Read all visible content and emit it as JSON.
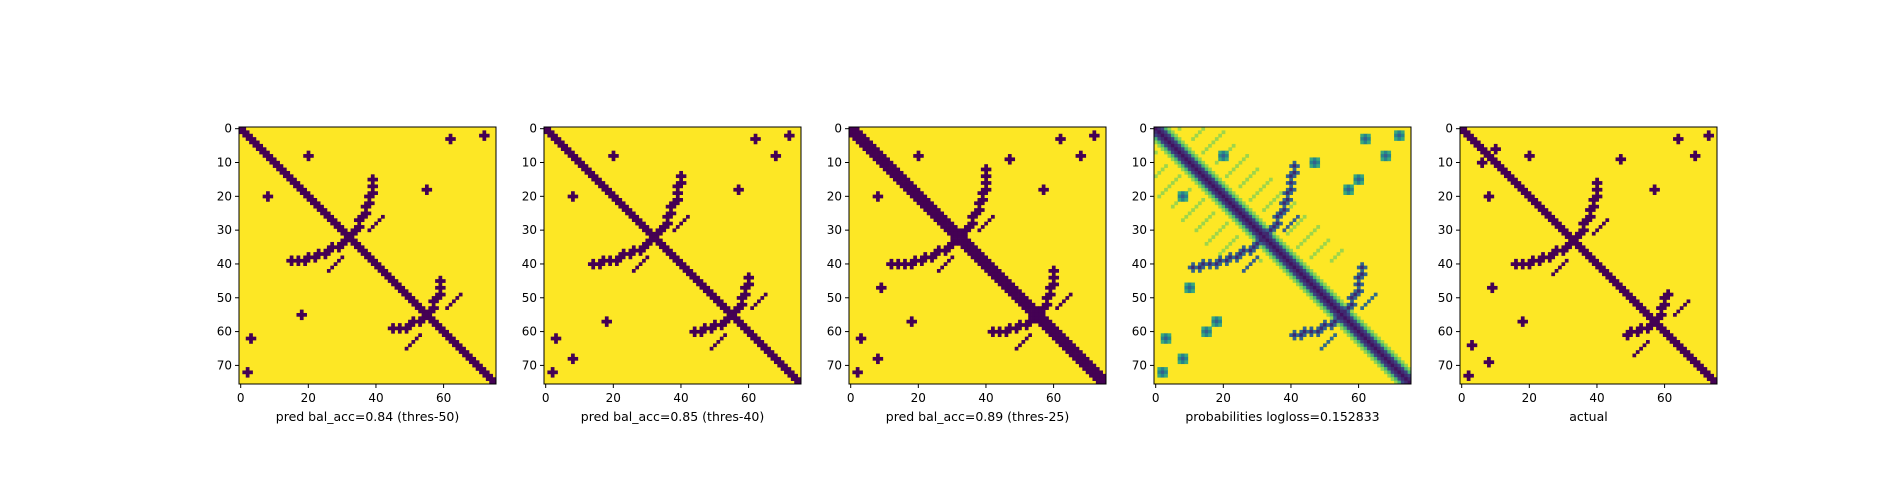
{
  "colors": {
    "low": "#440154",
    "high": "#fde725",
    "colormap": "viridis",
    "axes": "#000000",
    "background": "#ffffff"
  },
  "chart_data": [
    {
      "type": "heatmap",
      "xlabel": "pred bal_acc=0.84 (thres-50)",
      "xticks": [
        0,
        20,
        40,
        60
      ],
      "yticks": [
        0,
        10,
        20,
        30,
        40,
        50,
        60,
        70
      ],
      "xlim": [
        0,
        75
      ],
      "ylim": [
        75,
        0
      ],
      "shape": [
        76,
        76
      ],
      "value_range": [
        0,
        1
      ],
      "binary": true,
      "pattern": {
        "main_diagonal_halfwidth": 1.8,
        "cross_center": [
          32,
          32
        ],
        "cross_arm_length": 12,
        "cross2_center": [
          55,
          55
        ],
        "cross2_arm_length": 7,
        "blobs": [
          [
            8,
            20
          ],
          [
            20,
            8
          ],
          [
            18,
            55
          ],
          [
            55,
            18
          ],
          [
            3,
            62
          ],
          [
            62,
            3
          ],
          [
            2,
            72
          ],
          [
            72,
            2
          ]
        ]
      }
    },
    {
      "type": "heatmap",
      "xlabel": "pred bal_acc=0.85 (thres-40)",
      "xticks": [
        0,
        20,
        40,
        60
      ],
      "yticks": [
        0,
        10,
        20,
        30,
        40,
        50,
        60,
        70
      ],
      "xlim": [
        0,
        75
      ],
      "ylim": [
        75,
        0
      ],
      "shape": [
        76,
        76
      ],
      "value_range": [
        0,
        1
      ],
      "binary": true,
      "pattern": {
        "main_diagonal_halfwidth": 1.9,
        "cross_center": [
          32,
          32
        ],
        "cross_arm_length": 13,
        "cross2_center": [
          55,
          55
        ],
        "cross2_arm_length": 8,
        "blobs": [
          [
            8,
            20
          ],
          [
            20,
            8
          ],
          [
            18,
            57
          ],
          [
            57,
            18
          ],
          [
            3,
            62
          ],
          [
            62,
            3
          ],
          [
            2,
            72
          ],
          [
            72,
            2
          ],
          [
            8,
            68
          ],
          [
            68,
            8
          ]
        ]
      }
    },
    {
      "type": "heatmap",
      "xlabel": "pred bal_acc=0.89 (thres-25)",
      "xticks": [
        0,
        20,
        40,
        60
      ],
      "yticks": [
        0,
        10,
        20,
        30,
        40,
        50,
        60,
        70
      ],
      "xlim": [
        0,
        75
      ],
      "ylim": [
        75,
        0
      ],
      "shape": [
        76,
        76
      ],
      "value_range": [
        0,
        1
      ],
      "binary": true,
      "pattern": {
        "main_diagonal_halfwidth": 2.2,
        "cross_center": [
          32,
          32
        ],
        "cross_arm_length": 14,
        "cross2_center": [
          55,
          55
        ],
        "cross2_arm_length": 9,
        "blobs": [
          [
            8,
            20
          ],
          [
            20,
            8
          ],
          [
            18,
            57
          ],
          [
            57,
            18
          ],
          [
            3,
            62
          ],
          [
            62,
            3
          ],
          [
            2,
            72
          ],
          [
            72,
            2
          ],
          [
            8,
            68
          ],
          [
            68,
            8
          ],
          [
            9,
            47
          ],
          [
            47,
            9
          ]
        ]
      }
    },
    {
      "type": "heatmap",
      "xlabel": "probabilities logloss=0.152833",
      "xticks": [
        0,
        20,
        40,
        60
      ],
      "yticks": [
        0,
        10,
        20,
        30,
        40,
        50,
        60,
        70
      ],
      "xlim": [
        0,
        75
      ],
      "ylim": [
        75,
        0
      ],
      "shape": [
        76,
        76
      ],
      "value_range": [
        0,
        1
      ],
      "binary": false,
      "pattern": {
        "main_diagonal_halfwidth": 2.4,
        "cross_center": [
          32,
          32
        ],
        "cross_arm_length": 15,
        "cross2_center": [
          55,
          55
        ],
        "cross2_arm_length": 10,
        "blobs": [
          [
            8,
            20
          ],
          [
            20,
            8
          ],
          [
            18,
            57
          ],
          [
            57,
            18
          ],
          [
            3,
            62
          ],
          [
            62,
            3
          ],
          [
            2,
            72
          ],
          [
            72,
            2
          ],
          [
            8,
            68
          ],
          [
            68,
            8
          ],
          [
            10,
            47
          ],
          [
            47,
            10
          ],
          [
            15,
            60
          ],
          [
            60,
            15
          ]
        ]
      }
    },
    {
      "type": "heatmap",
      "xlabel": "actual",
      "xticks": [
        0,
        20,
        40,
        60
      ],
      "yticks": [
        0,
        10,
        20,
        30,
        40,
        50,
        60,
        70
      ],
      "xlim": [
        0,
        75
      ],
      "ylim": [
        75,
        0
      ],
      "shape": [
        76,
        76
      ],
      "value_range": [
        0,
        1
      ],
      "binary": true,
      "pattern": {
        "main_diagonal_halfwidth": 1.6,
        "cross_center": [
          33,
          33
        ],
        "cross_arm_length": 12,
        "cross2_center": [
          57,
          57
        ],
        "cross2_arm_length": 6,
        "blobs": [
          [
            8,
            20
          ],
          [
            20,
            8
          ],
          [
            18,
            57
          ],
          [
            57,
            18
          ],
          [
            3,
            64
          ],
          [
            64,
            3
          ],
          [
            2,
            73
          ],
          [
            73,
            2
          ],
          [
            8,
            69
          ],
          [
            69,
            8
          ],
          [
            9,
            47
          ],
          [
            47,
            9
          ],
          [
            10,
            6
          ],
          [
            6,
            10
          ]
        ]
      }
    }
  ]
}
